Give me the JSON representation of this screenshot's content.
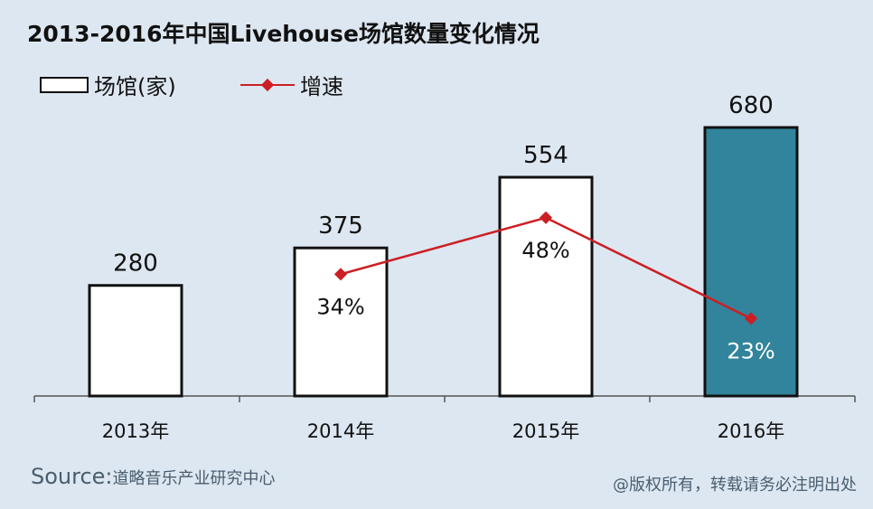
{
  "header": {
    "title": "2013-2016年中国Livehouse场馆数量变化情况"
  },
  "legend": {
    "venues_label": "场馆(家)",
    "growth_label": "增速"
  },
  "footer": {
    "source_prefix": "Source:",
    "source_name": "道略音乐产业研究中心",
    "copyright": "@版权所有，转载请务必注明出处"
  },
  "colors": {
    "background": "#dde7f1",
    "bar_fill": "#ffffff",
    "bar_highlight": "#31849b",
    "bar_border": "#111111",
    "growth_line": "#cc1f24"
  },
  "chart_data": {
    "type": "bar",
    "title": "2013-2016年中国Livehouse场馆数量变化情况",
    "categories": [
      "2013年",
      "2014年",
      "2015年",
      "2016年"
    ],
    "series": [
      {
        "name": "场馆(家)",
        "type": "bar",
        "values": [
          280,
          375,
          554,
          680
        ],
        "labels": [
          "280",
          "375",
          "554",
          "680"
        ],
        "highlight_index": 3
      },
      {
        "name": "增速",
        "type": "line",
        "values": [
          null,
          34,
          48,
          23
        ],
        "labels": [
          "",
          "34%",
          "48%",
          "23%"
        ],
        "unit": "%"
      }
    ],
    "bar_ylim": [
      0,
      680
    ],
    "line_ylim": [
      0,
      80
    ],
    "legend_position": "top-left",
    "grid": false
  }
}
